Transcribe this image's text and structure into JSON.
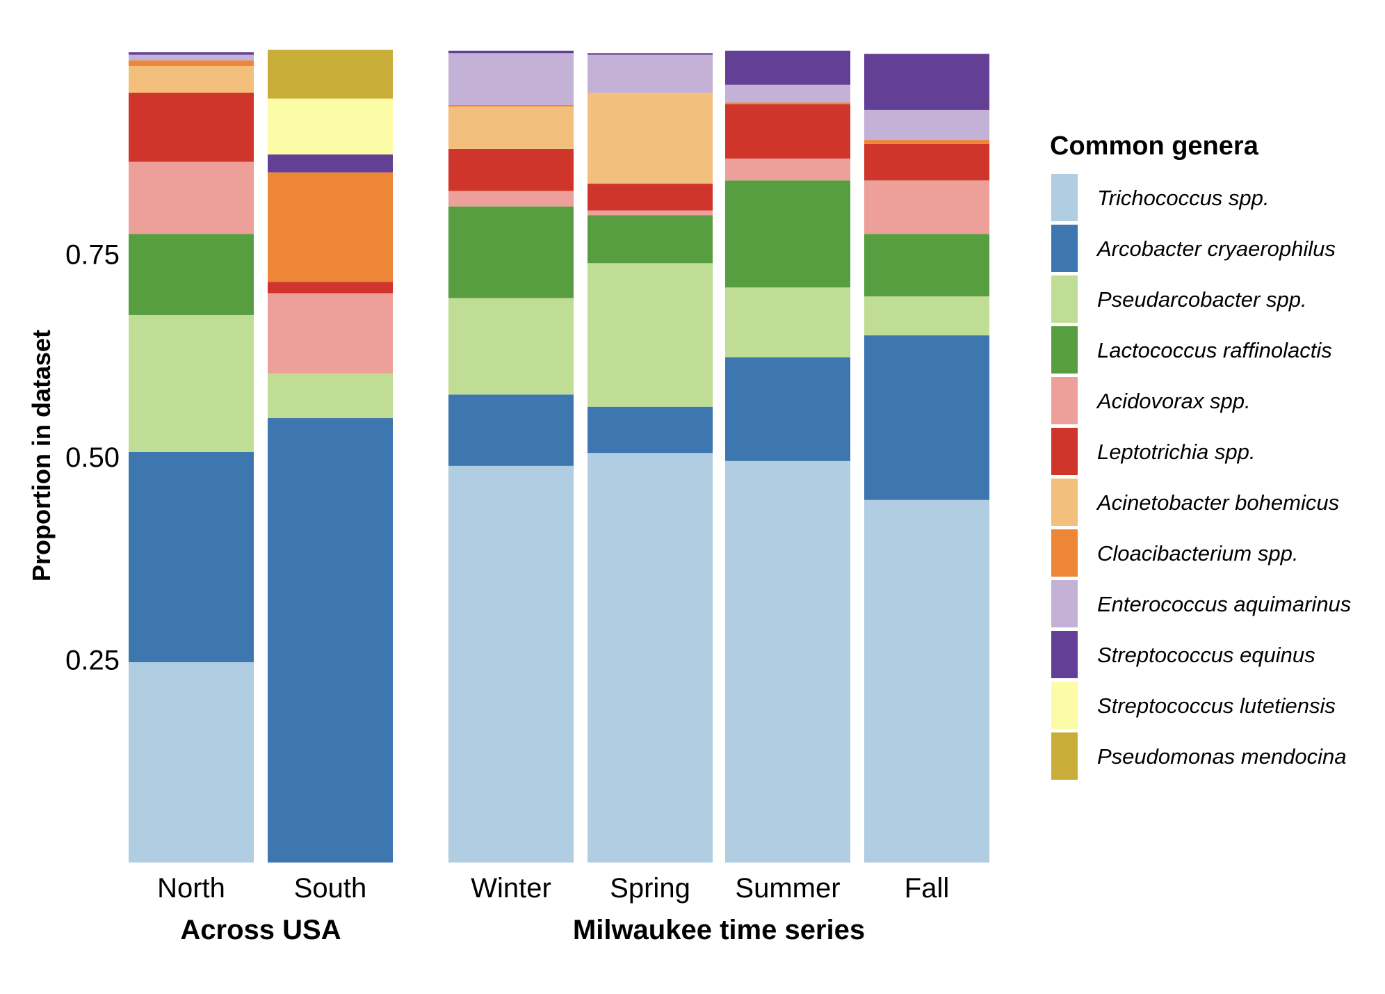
{
  "chart_data": {
    "type": "bar",
    "stacked": true,
    "ylabel": "Proportion in dataset",
    "ylim": [
      0,
      1
    ],
    "yticks": [
      0.25,
      0.5,
      0.75
    ],
    "ytick_labels": [
      "0.25",
      "0.50",
      "0.75"
    ],
    "grid": false,
    "legend_title": "Common genera",
    "legend_position": "right",
    "groups": [
      {
        "label": "Across USA",
        "categories": [
          "North",
          "South"
        ]
      },
      {
        "label": "Milwaukee time series",
        "categories": [
          "Winter",
          "Spring",
          "Summer",
          "Fall"
        ]
      }
    ],
    "categories": [
      "North",
      "South",
      "Winter",
      "Spring",
      "Summer",
      "Fall"
    ],
    "series": [
      {
        "name": "Trichococcus spp.",
        "color": "#b0cde1",
        "values": [
          0.247,
          0.0,
          0.489,
          0.505,
          0.495,
          0.447
        ]
      },
      {
        "name": "Arcobacter cryaerophilus",
        "color": "#3e76b0",
        "values": [
          0.259,
          0.548,
          0.088,
          0.057,
          0.128,
          0.203
        ]
      },
      {
        "name": "Pseudarcobacter spp.",
        "color": "#bfdd94",
        "values": [
          0.169,
          0.055,
          0.119,
          0.177,
          0.086,
          0.048
        ]
      },
      {
        "name": "Lactococcus raffinolactis",
        "color": "#579e41",
        "values": [
          0.1,
          0.0,
          0.113,
          0.059,
          0.132,
          0.077
        ]
      },
      {
        "name": "Acidovorax spp.",
        "color": "#eca099",
        "values": [
          0.089,
          0.099,
          0.019,
          0.006,
          0.027,
          0.066
        ]
      },
      {
        "name": "Leptotrichia spp.",
        "color": "#d0352b",
        "values": [
          0.085,
          0.014,
          0.052,
          0.033,
          0.067,
          0.045
        ]
      },
      {
        "name": "Acinetobacter bohemicus",
        "color": "#f3bf7d",
        "values": [
          0.033,
          0.0,
          0.052,
          0.112,
          0.0,
          0.0
        ]
      },
      {
        "name": "Cloacibacterium spp.",
        "color": "#ed8636",
        "values": [
          0.007,
          0.135,
          0.002,
          0.0,
          0.002,
          0.005
        ]
      },
      {
        "name": "Enterococcus aquimarinus",
        "color": "#c4b2d6",
        "values": [
          0.007,
          0.0,
          0.064,
          0.047,
          0.022,
          0.037
        ]
      },
      {
        "name": "Streptococcus equinus",
        "color": "#633f96",
        "values": [
          0.003,
          0.022,
          0.003,
          0.002,
          0.042,
          0.069
        ]
      },
      {
        "name": "Streptococcus lutetiensis",
        "color": "#fdfca6",
        "values": [
          0.0,
          0.069,
          0.0,
          0.0,
          0.0,
          0.0
        ]
      },
      {
        "name": "Pseudomonas mendocina",
        "color": "#c8ad39",
        "values": [
          0.0,
          0.06,
          0.0,
          0.0,
          0.0,
          0.0
        ]
      }
    ]
  }
}
